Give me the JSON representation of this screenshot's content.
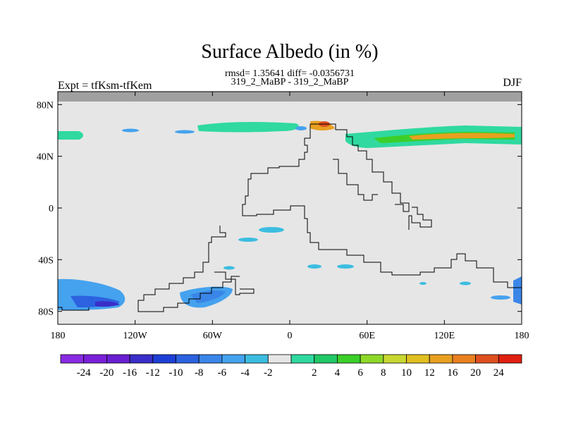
{
  "title": "Surface Albedo (in %)",
  "stats_line": "rmsd= 1.35641 diff= -0.0356731",
  "case_line": "319_2_MaBP - 319_2_MaBP",
  "left_label": "Expt = tfKsm-tfKem",
  "right_label": "DJF",
  "map": {
    "lon_range": [
      -180,
      180
    ],
    "lat_range": [
      -90,
      90
    ],
    "lon_ticks": [
      {
        "value": -180,
        "label": "180"
      },
      {
        "value": -120,
        "label": "120W"
      },
      {
        "value": -60,
        "label": "60W"
      },
      {
        "value": 0,
        "label": "0"
      },
      {
        "value": 60,
        "label": "60E"
      },
      {
        "value": 120,
        "label": "120E"
      },
      {
        "value": 180,
        "label": "180"
      }
    ],
    "lat_ticks": [
      {
        "value": 80,
        "label": "80N"
      },
      {
        "value": 40,
        "label": "40N"
      },
      {
        "value": 0,
        "label": "0"
      },
      {
        "value": -40,
        "label": "40S"
      },
      {
        "value": -80,
        "label": "80S"
      }
    ],
    "background_color": "#e6e6e6",
    "missing_color": "#a0a0a0"
  },
  "colorbar": {
    "colors": [
      "#8a2be2",
      "#7a20d8",
      "#6a1fd1",
      "#3a2ec8",
      "#1e3fd6",
      "#2c62e0",
      "#3a86e8",
      "#45a2ee",
      "#3cbde0",
      "#e6e6e6",
      "#2fd9a0",
      "#22c868",
      "#3ccf2a",
      "#8ed82a",
      "#c8d830",
      "#e0c020",
      "#e8a020",
      "#e88020",
      "#e05020",
      "#e02010"
    ],
    "labels": [
      "-24",
      "-20",
      "-16",
      "-12",
      "-10",
      "-8",
      "-6",
      "-4",
      "-2",
      "2",
      "4",
      "6",
      "8",
      "10",
      "12",
      "16",
      "20",
      "24"
    ]
  }
}
